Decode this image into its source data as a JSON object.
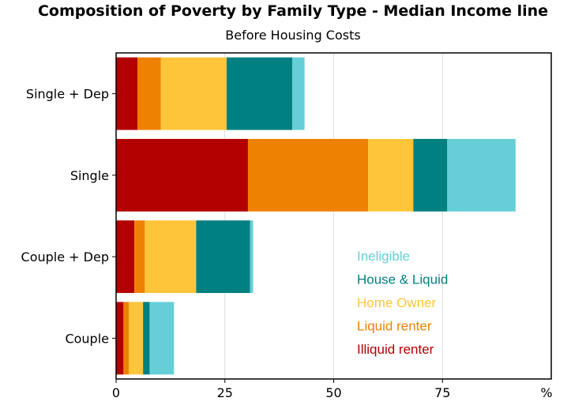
{
  "chart_data": {
    "type": "bar",
    "orientation": "horizontal",
    "stacked": true,
    "title": "Composition of Poverty by Family Type - Median Income line",
    "subtitle": "Before Housing Costs",
    "xlabel": "",
    "x_unit": "%",
    "ylabel": "",
    "xlim": [
      0,
      100
    ],
    "x_ticks": [
      "0",
      "25",
      "50",
      "75"
    ],
    "categories": [
      "Single + Dep",
      "Single",
      "Couple + Dep",
      "Couple"
    ],
    "series": [
      {
        "name": "Illiquid renter",
        "color": "#b30000",
        "values": [
          4.9,
          30.3,
          4.2,
          1.7
        ]
      },
      {
        "name": "Liquid renter",
        "color": "#ee8100",
        "values": [
          5.4,
          27.6,
          2.4,
          1.2
        ]
      },
      {
        "name": "Home Owner",
        "color": "#ffc53a",
        "values": [
          15.1,
          10.4,
          11.8,
          3.3
        ]
      },
      {
        "name": "House & Liquid",
        "color": "#008080",
        "values": [
          15.1,
          7.8,
          12.4,
          1.5
        ]
      },
      {
        "name": "Ineligible",
        "color": "#66ced6",
        "values": [
          2.8,
          15.7,
          0.7,
          5.6
        ]
      }
    ],
    "legend_position": "inside-lower-right",
    "legend_order": [
      "Ineligible",
      "House & Liquid",
      "Home Owner",
      "Liquid renter",
      "Illiquid renter"
    ],
    "grid": {
      "x": true,
      "y": false
    }
  }
}
